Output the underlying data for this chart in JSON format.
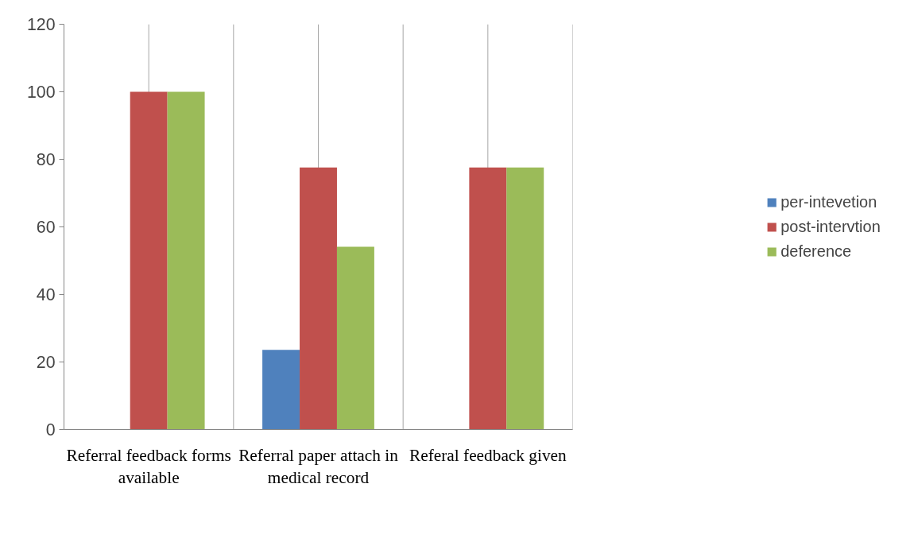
{
  "chart_data": {
    "type": "bar",
    "categories": [
      "Referral feedback forms available",
      "Referral paper attach in medical record",
      "Referal feedback given"
    ],
    "series": [
      {
        "name": "per-intevetion",
        "color": "#4f81bd",
        "values": [
          0,
          23.6,
          0
        ]
      },
      {
        "name": "post-intervtion",
        "color": "#c0504d",
        "values": [
          100,
          77.6,
          77.6
        ]
      },
      {
        "name": "deference",
        "color": "#9bbb59",
        "values": [
          100,
          54.1,
          77.6
        ]
      }
    ],
    "ylim": [
      0,
      120
    ],
    "yticks": [
      0,
      20,
      40,
      60,
      80,
      100,
      120
    ],
    "grid": "x",
    "legend": "right"
  }
}
